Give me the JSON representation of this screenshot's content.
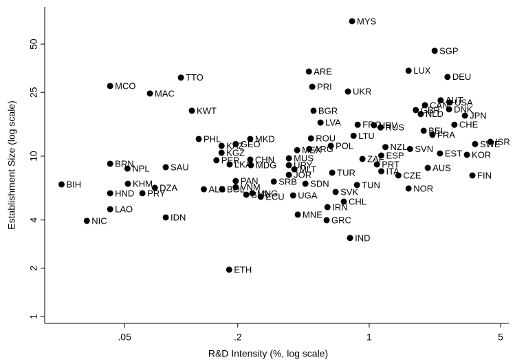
{
  "chart_data": {
    "type": "scatter",
    "xlabel": "R&D Intensity (%, log scale)",
    "ylabel": "Establishment Size (log scale)",
    "xscale": "log",
    "yscale": "log",
    "grid": false,
    "color": "#000000",
    "xlim": [
      0.0188,
      5.53
    ],
    "ylim": [
      0.906,
      85.3
    ],
    "xticks": [
      {
        "value": 0.05,
        "label": ".05"
      },
      {
        "value": 0.2,
        "label": ".2"
      },
      1,
      5
    ],
    "yticks": [
      1,
      2,
      4,
      10,
      25,
      50
    ],
    "labels": [
      "MYS",
      "SGP",
      "LUX",
      "DEU",
      "ARE",
      "TTO",
      "MCO",
      "PRI",
      "UKR",
      "MAC",
      "AUT",
      "USA",
      "CAN",
      "DNK",
      "GBR",
      "NLD",
      "JPN",
      "KWT",
      "BGR",
      "LVA",
      "CHE",
      "FRO",
      "HRV",
      "RUS",
      "BEL",
      "FRA",
      "LTU",
      "ROU",
      "PHL",
      "MKD",
      "ISR",
      "SWE",
      "GEO",
      "KAZ",
      "POL",
      "NZL",
      "ARG",
      "SVN",
      "MEX",
      "KGZ",
      "EST",
      "KOR",
      "ESP",
      "MUS",
      "ZAF",
      "CHN",
      "PER",
      "BRN",
      "PRT",
      "LKA",
      "URY",
      "MDG",
      "SAU",
      "AUS",
      "NPL",
      "MLT",
      "ITA",
      "TUR",
      "JOR",
      "CZE",
      "FIN",
      "PAN",
      "SRB",
      "SDN",
      "KHM",
      "BIH",
      "TUN",
      "VNM",
      "DZA",
      "NOR",
      "ALB",
      "BOL",
      "SVK",
      "HND",
      "PRY",
      "MNG",
      "BLR",
      "UGA",
      "ECU",
      "CHL",
      "IRN",
      "LAO",
      "MNE",
      "IDN",
      "GRC",
      "NIC",
      "IND",
      "ETH"
    ],
    "x": [
      0.811,
      2.23,
      1.62,
      2.61,
      0.478,
      0.0997,
      0.0419,
      0.498,
      0.771,
      0.0682,
      2.4,
      2.68,
      1.98,
      2.66,
      1.77,
      1.88,
      3.23,
      0.114,
      0.506,
      0.551,
      2.84,
      0.869,
      1.06,
      1.15,
      1.95,
      2.17,
      0.826,
      0.49,
      0.124,
      0.233,
      4.41,
      3.66,
      0.195,
      0.164,
      0.625,
      1.22,
      0.48,
      1.65,
      0.414,
      0.164,
      2.38,
      3.31,
      1.16,
      0.374,
      0.921,
      0.233,
      0.154,
      0.0419,
      1.1,
      0.181,
      0.374,
      0.235,
      0.0828,
      2.05,
      0.0518,
      0.4,
      1.16,
      0.636,
      0.374,
      1.43,
      3.54,
      0.195,
      0.311,
      0.458,
      0.0521,
      0.0231,
      0.861,
      0.195,
      0.0724,
      1.62,
      0.132,
      0.165,
      0.663,
      0.0419,
      0.0622,
      0.239,
      0.222,
      0.394,
      0.265,
      0.733,
      0.6,
      0.0419,
      0.417,
      0.0828,
      0.594,
      0.0315,
      0.791,
      0.18
    ],
    "values": [
      69.4,
      45.4,
      34.1,
      31.2,
      33.7,
      30.9,
      27.4,
      27.1,
      25.3,
      24.6,
      22.3,
      21.6,
      20.8,
      19.6,
      19.4,
      18.3,
      17.9,
      19.2,
      19.2,
      16.2,
      15.7,
      15.7,
      15.6,
      15.1,
      14.4,
      13.6,
      13.4,
      12.9,
      12.8,
      12.8,
      12.3,
      11.9,
      11.9,
      11.6,
      11.6,
      11.4,
      11.1,
      11.1,
      10.9,
      10.5,
      10.4,
      10.2,
      10.1,
      9.7,
      9.61,
      9.52,
      9.43,
      8.97,
      8.88,
      8.88,
      8.79,
      8.79,
      8.53,
      8.45,
      8.37,
      8.28,
      8.05,
      7.89,
      7.65,
      7.58,
      7.58,
      7.0,
      6.94,
      6.73,
      6.73,
      6.67,
      6.61,
      6.41,
      6.35,
      6.29,
      6.22,
      6.22,
      5.98,
      5.87,
      5.87,
      5.87,
      5.75,
      5.69,
      5.58,
      5.21,
      4.81,
      4.67,
      4.32,
      4.15,
      3.99,
      3.95,
      3.09,
      1.96
    ]
  }
}
